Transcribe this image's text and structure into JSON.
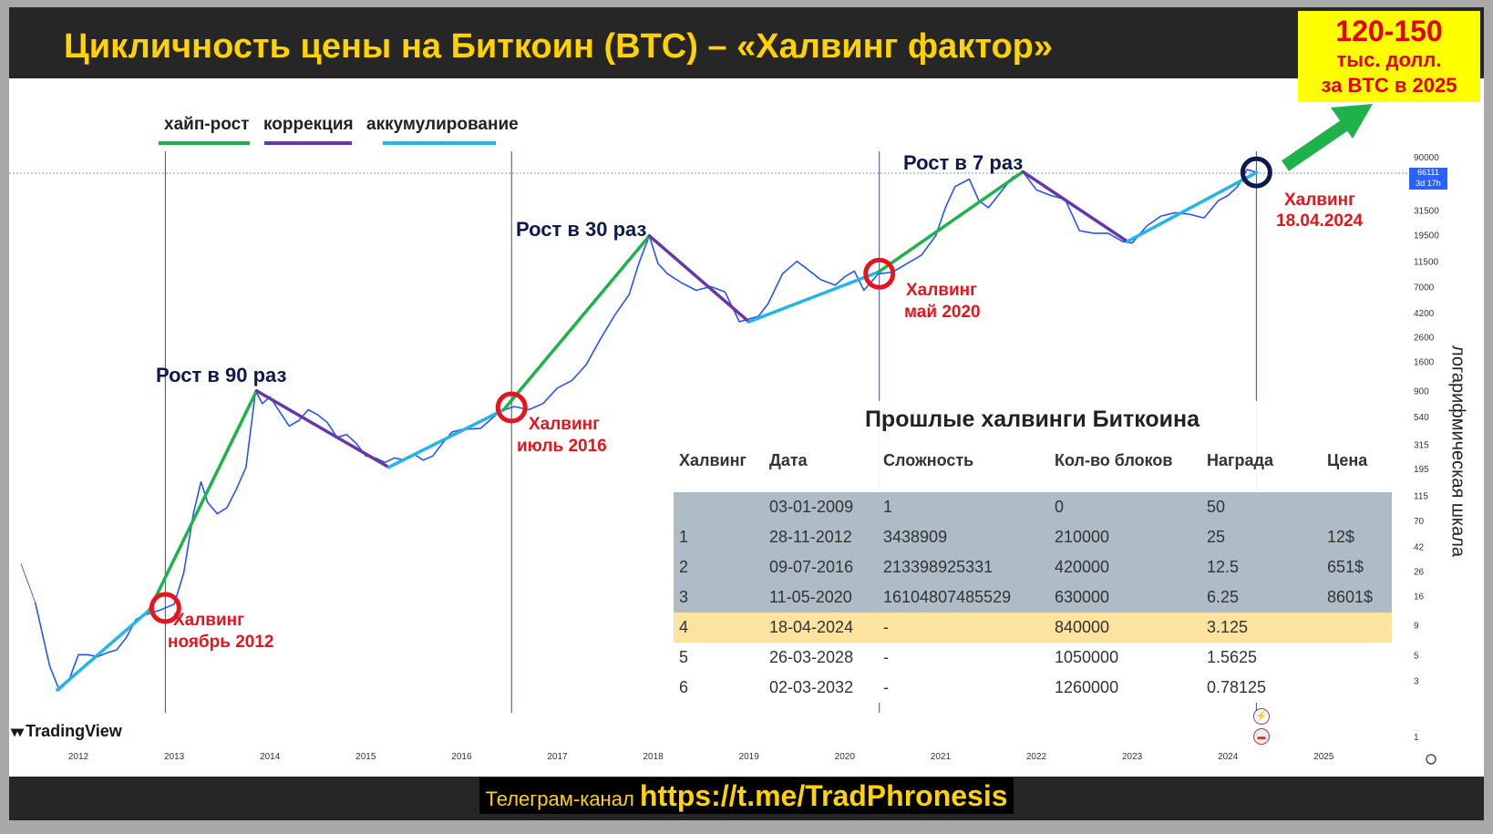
{
  "header": {
    "title": "Цикличность цены на Биткоин (BTC) – «Халвинг фактор»",
    "target_line1": "120-150",
    "target_line2": "тыс. долл.",
    "target_line3": "за BTC в 2025"
  },
  "legend": [
    {
      "label": "хайп-рост",
      "color": "#1db34a"
    },
    {
      "label": "коррекция",
      "color": "#6a35a6"
    },
    {
      "label": "аккумулирование",
      "color": "#21b6ea"
    }
  ],
  "colors": {
    "price_line": "#2454ff",
    "halving_circle": "#e8141c",
    "next_halving_circle": "#0d1a4d",
    "annotation_red": "#e8141c",
    "annotation_navy": "#0d1a4d",
    "header_bg": "#262626",
    "title_color": "#ffd200",
    "arrow": "#1db34a"
  },
  "annotations": {
    "growth_90": "Рост в 90 раз",
    "growth_30": "Рост в 30 раз",
    "growth_7": "Рост в 7 раз",
    "halving_2012_l1": "Халвинг",
    "halving_2012_l2": "ноябрь 2012",
    "halving_2016_l1": "Халвинг",
    "halving_2016_l2": "июль 2016",
    "halving_2020_l1": "Халвинг",
    "halving_2020_l2": "май 2020",
    "halving_2024_l1": "Халвинг",
    "halving_2024_l2": "18.04.2024"
  },
  "price_tag": {
    "value": "66111",
    "time": "3d 17h"
  },
  "axis_caption": "логарифмическая шкала",
  "tradingview": "TradingView",
  "footer": {
    "prefix": "Телеграм-канал ",
    "url": "https://t.me/TradPhronesis"
  },
  "table": {
    "title": "Прошлые халвинги Биткоина",
    "headers": [
      "Халвинг",
      "Дата",
      "Сложность",
      "Кол-во блоков",
      "Награда",
      "Цена"
    ],
    "rows": [
      [
        "",
        "03-01-2009",
        "1",
        "0",
        "50",
        ""
      ],
      [
        "1",
        "28-11-2012",
        "3438909",
        "210000",
        "25",
        "12$"
      ],
      [
        "2",
        "09-07-2016",
        "213398925331",
        "420000",
        "12.5",
        "651$"
      ],
      [
        "3",
        "11-05-2020",
        "16104807485529",
        "630000",
        "6.25",
        "8601$"
      ],
      [
        "4",
        "18-04-2024",
        "-",
        "840000",
        "3.125",
        ""
      ],
      [
        "5",
        "26-03-2028",
        "-",
        "1050000",
        "1.5625",
        ""
      ],
      [
        "6",
        "02-03-2032",
        "-",
        "1260000",
        "0.78125",
        ""
      ]
    ],
    "row_colors": [
      "#aebcc8",
      "#aebcc8",
      "#aebcc8",
      "#aebcc8",
      "#fde3a0",
      "#ffffff",
      "#ffffff"
    ]
  },
  "chart_data": {
    "type": "line",
    "scale": "log",
    "x_ticks": [
      "2012",
      "2013",
      "2014",
      "2015",
      "2016",
      "2017",
      "2018",
      "2019",
      "2020",
      "2021",
      "2022",
      "2023",
      "2024",
      "2025"
    ],
    "y_ticks": [
      "90000",
      "66111",
      "31500",
      "19500",
      "11500",
      "7000",
      "4200",
      "2600",
      "1600",
      "900",
      "540",
      "315",
      "195",
      "115",
      "70",
      "42",
      "26",
      "16",
      "9",
      "5",
      "3",
      "1"
    ],
    "y_tick_values": [
      90000,
      66111,
      31500,
      19500,
      11500,
      7000,
      4200,
      2600,
      1600,
      900,
      540,
      315,
      195,
      115,
      70,
      42,
      26,
      16,
      9,
      5,
      3,
      1
    ],
    "series": [
      {
        "x": [
          2011.55,
          2011.7,
          2011.8,
          2011.9,
          2012.0,
          2012.1,
          2012.2,
          2012.3,
          2012.4,
          2012.5,
          2012.6,
          2012.7,
          2012.85,
          2013.0,
          2013.1,
          2013.2,
          2013.28,
          2013.35,
          2013.45,
          2013.55,
          2013.65,
          2013.75,
          2013.85,
          2013.92,
          2014.0,
          2014.1,
          2014.2,
          2014.3,
          2014.4,
          2014.5,
          2014.6,
          2014.7,
          2014.8,
          2014.9,
          2015.0,
          2015.1,
          2015.2,
          2015.3,
          2015.4,
          2015.5,
          2015.6,
          2015.7,
          2015.8,
          2015.9,
          2016.0,
          2016.2,
          2016.4,
          2016.55,
          2016.7,
          2016.85,
          2017.0,
          2017.15,
          2017.3,
          2017.45,
          2017.6,
          2017.75,
          2017.85,
          2017.96,
          2018.05,
          2018.15,
          2018.3,
          2018.45,
          2018.6,
          2018.75,
          2018.9,
          2019.0,
          2019.1,
          2019.2,
          2019.35,
          2019.5,
          2019.6,
          2019.75,
          2019.9,
          2020.0,
          2020.1,
          2020.2,
          2020.35,
          2020.5,
          2020.65,
          2020.8,
          2020.95,
          2021.05,
          2021.15,
          2021.3,
          2021.4,
          2021.5,
          2021.6,
          2021.75,
          2021.86,
          2022.0,
          2022.15,
          2022.3,
          2022.45,
          2022.6,
          2022.75,
          2022.9,
          2023.0,
          2023.15,
          2023.3,
          2023.45,
          2023.6,
          2023.75,
          2023.9,
          2024.0,
          2024.1,
          2024.2,
          2024.3
        ],
        "values": [
          14,
          4,
          2.5,
          3,
          5,
          5,
          4.8,
          5.2,
          5.5,
          7,
          10,
          11,
          12,
          13.5,
          25,
          80,
          150,
          100,
          80,
          90,
          130,
          200,
          900,
          700,
          800,
          600,
          450,
          500,
          620,
          560,
          480,
          360,
          380,
          320,
          250,
          240,
          220,
          240,
          230,
          260,
          230,
          250,
          320,
          400,
          420,
          430,
          600,
          660,
          620,
          700,
          950,
          1100,
          1500,
          2500,
          4000,
          6000,
          11000,
          19000,
          11000,
          9000,
          7500,
          6500,
          7000,
          6300,
          3500,
          3700,
          3900,
          5000,
          9000,
          11500,
          10000,
          8000,
          7200,
          8500,
          9500,
          6500,
          9000,
          9300,
          11000,
          13000,
          19000,
          33000,
          50000,
          58000,
          38000,
          33000,
          42000,
          60000,
          67000,
          47000,
          42000,
          39000,
          21000,
          20000,
          20000,
          17000,
          16500,
          23000,
          28000,
          30000,
          29000,
          27000,
          38000,
          42000,
          50000,
          70000,
          66111
        ]
      }
    ],
    "trend_segments": [
      {
        "phase": "аккумулирование",
        "x": [
          2011.78,
          2012.74
        ],
        "y": [
          2.5,
          12
        ]
      },
      {
        "phase": "хайп-рост",
        "x": [
          2012.74,
          2013.86
        ],
        "y": [
          12,
          900
        ]
      },
      {
        "phase": "коррекция",
        "x": [
          2013.86,
          2015.24
        ],
        "y": [
          900,
          200
        ]
      },
      {
        "phase": "аккумулирование",
        "x": [
          2015.24,
          2016.44
        ],
        "y": [
          200,
          620
        ]
      },
      {
        "phase": "хайп-рост",
        "x": [
          2016.44,
          2017.96
        ],
        "y": [
          620,
          19000
        ]
      },
      {
        "phase": "коррекция",
        "x": [
          2017.96,
          2019.0
        ],
        "y": [
          19000,
          3500
        ]
      },
      {
        "phase": "аккумулирование",
        "x": [
          2019.0,
          2020.35
        ],
        "y": [
          3500,
          9300
        ]
      },
      {
        "phase": "хайп-рост",
        "x": [
          2020.35,
          2021.86
        ],
        "y": [
          9300,
          67000
        ]
      },
      {
        "phase": "коррекция",
        "x": [
          2021.86,
          2022.95
        ],
        "y": [
          67000,
          17000
        ]
      },
      {
        "phase": "аккумулирование",
        "x": [
          2022.95,
          2024.3
        ],
        "y": [
          17000,
          66111
        ]
      }
    ],
    "halvings": [
      "2012-11-28",
      "2016-07-09",
      "2020-05-11",
      "2024-04-18"
    ],
    "grid": false,
    "legend_position": "top-left"
  }
}
